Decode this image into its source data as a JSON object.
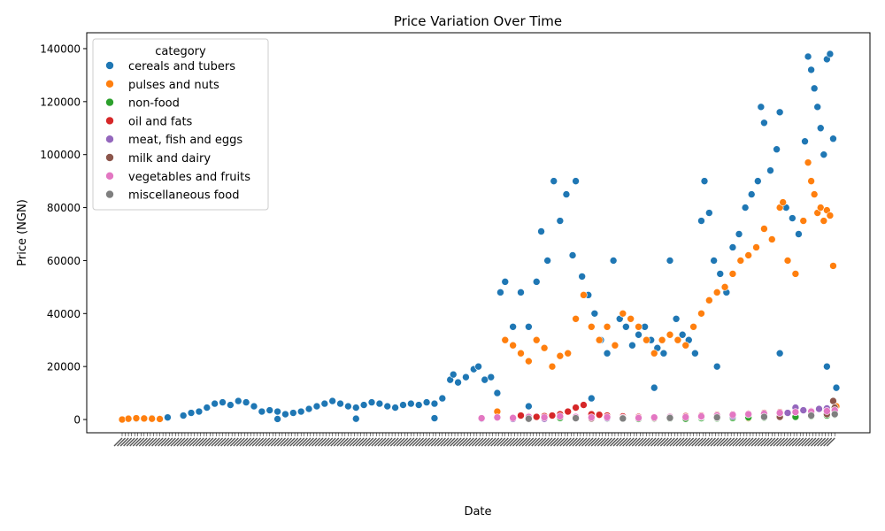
{
  "chart_data": {
    "type": "scatter",
    "title": "Price Variation Over Time",
    "xlabel": "Date",
    "ylabel": "Price (NGN)",
    "ylim": [
      -5000,
      146000
    ],
    "yticks": [
      0,
      20000,
      40000,
      60000,
      80000,
      100000,
      120000,
      140000
    ],
    "grid": false,
    "legend_position": "upper-left",
    "legend_title": "category",
    "x_tick_labels_note": "dense overlapping rotated date labels, illegible",
    "series": [
      {
        "name": "cereals and tubers",
        "color": "#1f77b4",
        "points": [
          [
            1,
            0
          ],
          [
            5,
            200
          ],
          [
            10,
            300
          ],
          [
            20,
            500
          ],
          [
            30,
            800
          ],
          [
            40,
            1500
          ],
          [
            45,
            2500
          ],
          [
            50,
            3000
          ],
          [
            55,
            4500
          ],
          [
            60,
            6000
          ],
          [
            65,
            6500
          ],
          [
            70,
            5500
          ],
          [
            75,
            7000
          ],
          [
            80,
            6500
          ],
          [
            85,
            5000
          ],
          [
            90,
            3000
          ],
          [
            95,
            3500
          ],
          [
            100,
            3000
          ],
          [
            105,
            2000
          ],
          [
            110,
            2500
          ],
          [
            115,
            3000
          ],
          [
            120,
            4000
          ],
          [
            125,
            5000
          ],
          [
            130,
            6000
          ],
          [
            135,
            7000
          ],
          [
            140,
            6000
          ],
          [
            145,
            5000
          ],
          [
            150,
            4500
          ],
          [
            155,
            5500
          ],
          [
            160,
            6500
          ],
          [
            165,
            6000
          ],
          [
            170,
            5000
          ],
          [
            175,
            4500
          ],
          [
            180,
            5500
          ],
          [
            185,
            6000
          ],
          [
            190,
            5500
          ],
          [
            195,
            6500
          ],
          [
            200,
            6000
          ],
          [
            205,
            8000
          ],
          [
            210,
            15000
          ],
          [
            212,
            17000
          ],
          [
            215,
            14000
          ],
          [
            220,
            16000
          ],
          [
            225,
            19000
          ],
          [
            228,
            20000
          ],
          [
            232,
            15000
          ],
          [
            236,
            16000
          ],
          [
            240,
            10000
          ],
          [
            242,
            48000
          ],
          [
            245,
            52000
          ],
          [
            250,
            35000
          ],
          [
            255,
            48000
          ],
          [
            260,
            35000
          ],
          [
            265,
            52000
          ],
          [
            268,
            71000
          ],
          [
            272,
            60000
          ],
          [
            276,
            90000
          ],
          [
            280,
            75000
          ],
          [
            284,
            85000
          ],
          [
            288,
            62000
          ],
          [
            290,
            90000
          ],
          [
            294,
            54000
          ],
          [
            298,
            47000
          ],
          [
            302,
            40000
          ],
          [
            306,
            30000
          ],
          [
            310,
            25000
          ],
          [
            314,
            60000
          ],
          [
            318,
            38000
          ],
          [
            322,
            35000
          ],
          [
            326,
            28000
          ],
          [
            330,
            32000
          ],
          [
            334,
            35000
          ],
          [
            338,
            30000
          ],
          [
            342,
            27000
          ],
          [
            346,
            25000
          ],
          [
            350,
            60000
          ],
          [
            354,
            38000
          ],
          [
            358,
            32000
          ],
          [
            362,
            30000
          ],
          [
            366,
            25000
          ],
          [
            370,
            75000
          ],
          [
            372,
            90000
          ],
          [
            375,
            78000
          ],
          [
            378,
            60000
          ],
          [
            382,
            55000
          ],
          [
            386,
            48000
          ],
          [
            390,
            65000
          ],
          [
            394,
            70000
          ],
          [
            398,
            80000
          ],
          [
            402,
            85000
          ],
          [
            406,
            90000
          ],
          [
            408,
            118000
          ],
          [
            410,
            112000
          ],
          [
            414,
            94000
          ],
          [
            418,
            102000
          ],
          [
            420,
            116000
          ],
          [
            424,
            80000
          ],
          [
            428,
            76000
          ],
          [
            432,
            70000
          ],
          [
            436,
            105000
          ],
          [
            438,
            137000
          ],
          [
            440,
            132000
          ],
          [
            442,
            125000
          ],
          [
            444,
            118000
          ],
          [
            446,
            110000
          ],
          [
            448,
            100000
          ],
          [
            450,
            136000
          ],
          [
            452,
            138000
          ],
          [
            454,
            106000
          ],
          [
            456,
            12000
          ],
          [
            260,
            5000
          ],
          [
            300,
            8000
          ],
          [
            340,
            12000
          ],
          [
            380,
            20000
          ],
          [
            420,
            25000
          ],
          [
            450,
            20000
          ],
          [
            100,
            200
          ],
          [
            150,
            300
          ],
          [
            200,
            500
          ],
          [
            230,
            300
          ]
        ]
      },
      {
        "name": "pulses and nuts",
        "color": "#ff7f0e",
        "points": [
          [
            1,
            0
          ],
          [
            5,
            300
          ],
          [
            10,
            500
          ],
          [
            15,
            400
          ],
          [
            20,
            300
          ],
          [
            25,
            200
          ],
          [
            240,
            3000
          ],
          [
            245,
            30000
          ],
          [
            250,
            28000
          ],
          [
            255,
            25000
          ],
          [
            260,
            22000
          ],
          [
            265,
            30000
          ],
          [
            270,
            27000
          ],
          [
            275,
            20000
          ],
          [
            280,
            24000
          ],
          [
            285,
            25000
          ],
          [
            290,
            38000
          ],
          [
            295,
            47000
          ],
          [
            300,
            35000
          ],
          [
            305,
            30000
          ],
          [
            310,
            35000
          ],
          [
            315,
            28000
          ],
          [
            320,
            40000
          ],
          [
            325,
            38000
          ],
          [
            330,
            35000
          ],
          [
            335,
            30000
          ],
          [
            340,
            25000
          ],
          [
            345,
            30000
          ],
          [
            350,
            32000
          ],
          [
            355,
            30000
          ],
          [
            360,
            28000
          ],
          [
            365,
            35000
          ],
          [
            370,
            40000
          ],
          [
            375,
            45000
          ],
          [
            380,
            48000
          ],
          [
            385,
            50000
          ],
          [
            390,
            55000
          ],
          [
            395,
            60000
          ],
          [
            400,
            62000
          ],
          [
            405,
            65000
          ],
          [
            410,
            72000
          ],
          [
            415,
            68000
          ],
          [
            420,
            80000
          ],
          [
            422,
            82000
          ],
          [
            425,
            60000
          ],
          [
            430,
            55000
          ],
          [
            435,
            75000
          ],
          [
            438,
            97000
          ],
          [
            440,
            90000
          ],
          [
            442,
            85000
          ],
          [
            444,
            78000
          ],
          [
            446,
            80000
          ],
          [
            448,
            75000
          ],
          [
            450,
            79000
          ],
          [
            452,
            77000
          ],
          [
            454,
            58000
          ],
          [
            456,
            5000
          ],
          [
            300,
            2000
          ],
          [
            350,
            1000
          ],
          [
            400,
            500
          ]
        ]
      },
      {
        "name": "non-food",
        "color": "#2ca02c",
        "points": [
          [
            250,
            300
          ],
          [
            260,
            500
          ],
          [
            270,
            800
          ],
          [
            280,
            600
          ],
          [
            290,
            400
          ],
          [
            300,
            500
          ],
          [
            310,
            300
          ],
          [
            320,
            400
          ],
          [
            330,
            200
          ],
          [
            340,
            300
          ],
          [
            350,
            400
          ],
          [
            360,
            300
          ],
          [
            370,
            500
          ],
          [
            380,
            400
          ],
          [
            390,
            600
          ],
          [
            400,
            800
          ],
          [
            410,
            700
          ],
          [
            420,
            900
          ],
          [
            430,
            1000
          ],
          [
            440,
            1200
          ],
          [
            450,
            1500
          ],
          [
            455,
            1800
          ]
        ]
      },
      {
        "name": "oil and fats",
        "color": "#d62728",
        "points": [
          [
            255,
            1500
          ],
          [
            260,
            1200
          ],
          [
            265,
            1000
          ],
          [
            270,
            1300
          ],
          [
            275,
            1500
          ],
          [
            280,
            2000
          ],
          [
            285,
            3000
          ],
          [
            290,
            4500
          ],
          [
            295,
            5500
          ],
          [
            300,
            2000
          ],
          [
            305,
            1800
          ],
          [
            310,
            1500
          ],
          [
            320,
            1200
          ],
          [
            330,
            1000
          ],
          [
            340,
            900
          ],
          [
            350,
            1100
          ],
          [
            360,
            1300
          ],
          [
            370,
            1500
          ],
          [
            380,
            1800
          ],
          [
            390,
            2000
          ],
          [
            400,
            2200
          ],
          [
            410,
            2500
          ],
          [
            420,
            2800
          ],
          [
            430,
            3000
          ],
          [
            440,
            3200
          ],
          [
            450,
            3500
          ]
        ]
      },
      {
        "name": "meat, fish and eggs",
        "color": "#9467bd",
        "points": [
          [
            250,
            200
          ],
          [
            270,
            300
          ],
          [
            290,
            400
          ],
          [
            310,
            500
          ],
          [
            330,
            600
          ],
          [
            350,
            800
          ],
          [
            370,
            1000
          ],
          [
            390,
            1200
          ],
          [
            410,
            1500
          ],
          [
            425,
            2500
          ],
          [
            430,
            4500
          ],
          [
            435,
            3500
          ],
          [
            440,
            3000
          ],
          [
            445,
            4000
          ],
          [
            450,
            4200
          ],
          [
            455,
            3800
          ]
        ]
      },
      {
        "name": "milk and dairy",
        "color": "#8c564b",
        "points": [
          [
            260,
            300
          ],
          [
            300,
            400
          ],
          [
            340,
            500
          ],
          [
            380,
            700
          ],
          [
            420,
            1000
          ],
          [
            450,
            2000
          ],
          [
            454,
            7000
          ],
          [
            455,
            4500
          ]
        ]
      },
      {
        "name": "vegetables and fruits",
        "color": "#e377c2",
        "points": [
          [
            230,
            500
          ],
          [
            240,
            800
          ],
          [
            250,
            600
          ],
          [
            260,
            1000
          ],
          [
            270,
            800
          ],
          [
            280,
            1200
          ],
          [
            290,
            1000
          ],
          [
            300,
            800
          ],
          [
            310,
            900
          ],
          [
            320,
            700
          ],
          [
            330,
            600
          ],
          [
            340,
            800
          ],
          [
            350,
            1000
          ],
          [
            360,
            900
          ],
          [
            370,
            1200
          ],
          [
            380,
            1500
          ],
          [
            390,
            1800
          ],
          [
            400,
            2000
          ],
          [
            410,
            2200
          ],
          [
            420,
            2500
          ],
          [
            430,
            2800
          ],
          [
            440,
            3000
          ],
          [
            450,
            3200
          ],
          [
            455,
            3500
          ]
        ]
      },
      {
        "name": "miscellaneous food",
        "color": "#7f7f7f",
        "points": [
          [
            260,
            300
          ],
          [
            290,
            500
          ],
          [
            320,
            400
          ],
          [
            350,
            600
          ],
          [
            380,
            800
          ],
          [
            410,
            1000
          ],
          [
            440,
            1500
          ],
          [
            455,
            2000
          ]
        ]
      }
    ]
  }
}
